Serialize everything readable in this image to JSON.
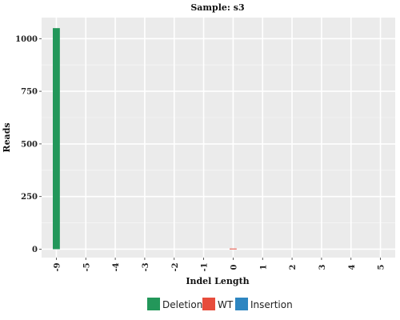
{
  "chart_data": {
    "type": "bar",
    "title": "Sample: s3",
    "xlabel": "Indel Length",
    "ylabel": "Reads",
    "categories": [
      "-9",
      "-5",
      "-4",
      "-3",
      "-2",
      "-1",
      "0",
      "1",
      "2",
      "3",
      "4",
      "5"
    ],
    "series": [
      {
        "name": "Deletion",
        "color": "#23975A",
        "values": [
          1050,
          0,
          0,
          0,
          0,
          0,
          0,
          0,
          0,
          0,
          0,
          0
        ]
      },
      {
        "name": "WT",
        "color": "#E74C3C",
        "values": [
          0,
          0,
          0,
          0,
          0,
          0,
          3,
          0,
          0,
          0,
          0,
          0
        ]
      },
      {
        "name": "Insertion",
        "color": "#2E86C1",
        "values": [
          0,
          0,
          0,
          0,
          0,
          0,
          0,
          0,
          0,
          0,
          0,
          0
        ]
      }
    ],
    "ylim": [
      -40,
      1100
    ],
    "yticks": [
      0,
      250,
      500,
      750,
      1000
    ],
    "ytick_labels": [
      "0",
      "250",
      "500",
      "750",
      "1000"
    ],
    "grid": true,
    "panel_background": "#EBEBEB",
    "legend_position": "bottom"
  }
}
